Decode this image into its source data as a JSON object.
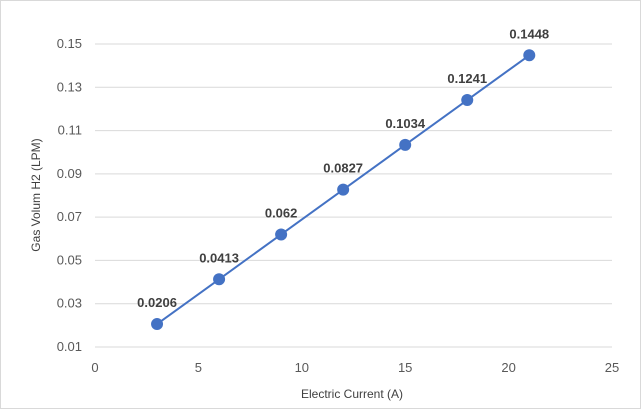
{
  "chart_data": {
    "type": "line",
    "title": "",
    "xlabel": "Electric Current (A)",
    "ylabel": "Gas Volum H2 (LPM)",
    "xlim": [
      0,
      25
    ],
    "ylim": [
      0.01,
      0.15
    ],
    "x_ticks": [
      "0",
      "5",
      "10",
      "15",
      "20",
      "25"
    ],
    "y_ticks": [
      "0.01",
      "0.03",
      "0.05",
      "0.07",
      "0.09",
      "0.11",
      "0.13",
      "0.15"
    ],
    "grid": "horizontal",
    "legend": "none",
    "series": [
      {
        "x": [
          3,
          6,
          9,
          12,
          15,
          18,
          21
        ],
        "y": [
          0.0206,
          0.0413,
          0.062,
          0.0827,
          0.1034,
          0.1241,
          0.1448
        ],
        "labels": [
          "0.0206",
          "0.0413",
          "0.062",
          "0.0827",
          "0.1034",
          "0.1241",
          "0.1448"
        ],
        "color": "#4472c4"
      }
    ]
  }
}
